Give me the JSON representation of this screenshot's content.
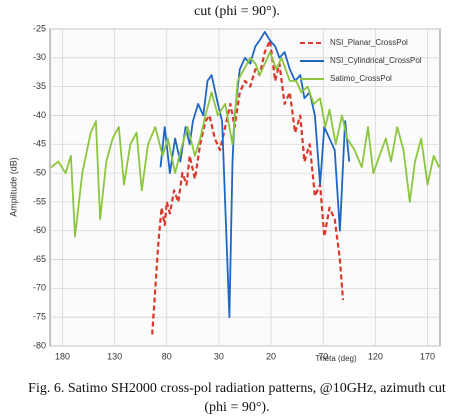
{
  "header": {
    "text": "cut (phi = 90°)."
  },
  "chart_data": {
    "type": "line",
    "x_label": "Theta (deg)",
    "y_label": "Amplitude (dB)",
    "xlim": [
      -192,
      182
    ],
    "ylim": [
      -80,
      -25
    ],
    "xticks": [
      {
        "value": -180,
        "label": "180"
      },
      {
        "value": -130,
        "label": "130"
      },
      {
        "value": -80,
        "label": "80"
      },
      {
        "value": -30,
        "label": "30"
      },
      20,
      70,
      120,
      170
    ],
    "yticks": [
      -25,
      -30,
      -35,
      -40,
      -45,
      -50,
      -55,
      -60,
      -65,
      -70,
      -75,
      -80
    ],
    "grid": true,
    "legend": "upper right",
    "series": [
      {
        "name": "NSI_Planar_CrossPol",
        "color": "#d9382b",
        "dash": true,
        "x": [
          -94,
          -91,
          -88,
          -85,
          -82,
          -80,
          -77,
          -73,
          -69,
          -65,
          -61,
          -58,
          -53,
          -48,
          -43,
          -39,
          -34,
          -29,
          -24,
          -19,
          -15,
          -10,
          -5,
          0,
          5,
          9,
          14,
          19,
          24,
          28,
          33,
          38,
          43,
          48,
          52,
          57,
          62,
          67,
          71,
          76,
          81,
          86,
          89
        ],
        "values": [
          -78,
          -70,
          -62,
          -56,
          -59,
          -55,
          -57,
          -53,
          -55,
          -50,
          -52,
          -47,
          -51,
          -45,
          -41,
          -40,
          -44,
          -46,
          -42,
          -38,
          -42,
          -36,
          -34,
          -35,
          -32,
          -33,
          -29,
          -27,
          -34,
          -31,
          -38,
          -36,
          -43,
          -40,
          -48,
          -45,
          -54,
          -52,
          -61,
          -56,
          -58,
          -65,
          -72
        ]
      },
      {
        "name": "NSI_Cylindrical_CrossPol",
        "color": "#1f66c2",
        "dash": false,
        "x": [
          -86,
          -82,
          -77,
          -72,
          -67,
          -62,
          -58,
          -55,
          -50,
          -45,
          -41,
          -37,
          -31,
          -27,
          -23,
          -20,
          -17,
          -15,
          -10,
          -5,
          0,
          5,
          9,
          14,
          19,
          24,
          28,
          33,
          38,
          43,
          48,
          52,
          57,
          62,
          67,
          71,
          76,
          81,
          86,
          91,
          95
        ],
        "values": [
          -49,
          -42,
          -50,
          -44,
          -48,
          -42,
          -45,
          -41,
          -38,
          -40,
          -34,
          -33,
          -38,
          -41,
          -60,
          -75,
          -48,
          -40,
          -32,
          -30,
          -31,
          -28,
          -27,
          -25.5,
          -27,
          -28,
          -30,
          -29,
          -32,
          -34,
          -33,
          -37,
          -36,
          -40,
          -52,
          -42,
          -44,
          -46,
          -60,
          -41,
          -48
        ]
      },
      {
        "name": "Satimo_CrossPol",
        "color": "#8cc63f",
        "dash": false,
        "x": [
          -191,
          -184,
          -177,
          -172,
          -168,
          -161,
          -153,
          -148,
          -144,
          -138,
          -132,
          -126,
          -121,
          -115,
          -109,
          -104,
          -98,
          -91,
          -84,
          -79,
          -72,
          -65,
          -60,
          -53,
          -48,
          -43,
          -37,
          -31,
          -24,
          -17,
          -12,
          -6,
          0,
          5,
          9,
          14,
          19,
          25,
          30,
          38,
          44,
          49,
          55,
          61,
          67,
          72,
          76,
          82,
          88,
          93,
          100,
          107,
          113,
          118,
          124,
          130,
          135,
          141,
          147,
          153,
          158,
          164,
          170,
          176,
          181
        ],
        "values": [
          -49,
          -48,
          -50,
          -47,
          -61,
          -50,
          -43,
          -41,
          -58,
          -48,
          -44,
          -42,
          -52,
          -45,
          -43,
          -53,
          -45,
          -42,
          -47,
          -44,
          -50,
          -45,
          -42,
          -47,
          -44,
          -40,
          -36,
          -40,
          -38,
          -45,
          -34,
          -32,
          -30,
          -31,
          -33,
          -31,
          -29,
          -32,
          -30,
          -34,
          -34,
          -36,
          -35,
          -38,
          -37,
          -42,
          -39,
          -45,
          -40,
          -44,
          -46,
          -49,
          -42,
          -50,
          -47,
          -44,
          -48,
          -42,
          -46,
          -55,
          -48,
          -44,
          -52,
          -47,
          -49
        ]
      }
    ]
  },
  "caption": {
    "line1": "Fig. 6. Satimo SH2000 cross-pol radiation patterns, @10GHz, azimuth cut",
    "line2": "(phi = 90°)."
  }
}
